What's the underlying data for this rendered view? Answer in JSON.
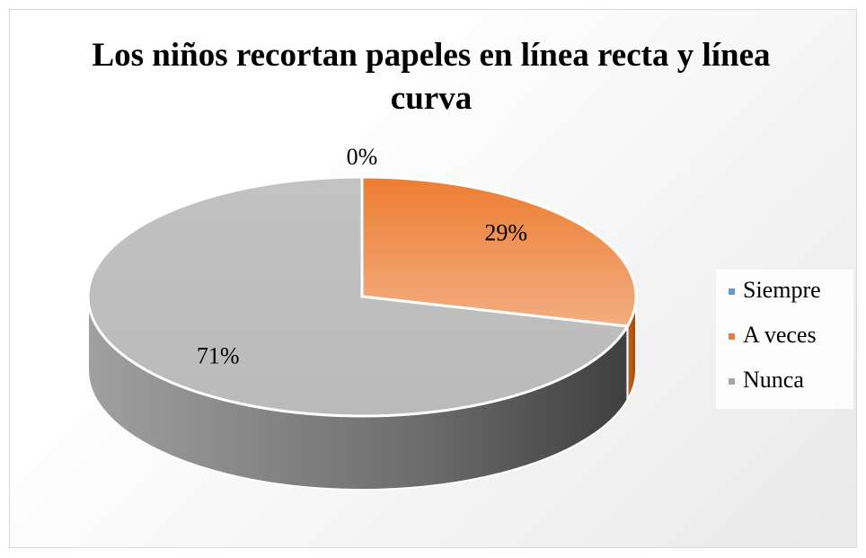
{
  "chart_data": {
    "type": "pie",
    "title": "Los niños recortan papeles en línea recta y línea curva",
    "categories": [
      "Siempre",
      "A veces",
      "Nunca"
    ],
    "values": [
      0,
      29,
      71
    ],
    "value_labels": [
      "0%",
      "29%",
      "71%"
    ],
    "colors": [
      "#5b9bd5",
      "#ed7d31",
      "#a5a5a5"
    ],
    "legend": "right"
  }
}
